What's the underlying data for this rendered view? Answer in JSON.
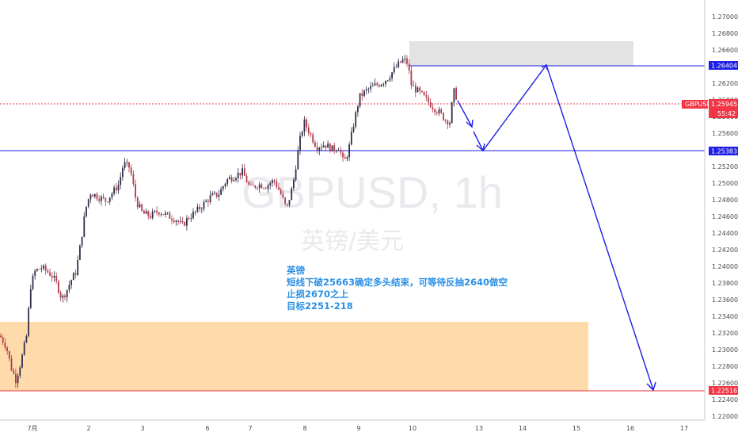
{
  "chart_data": {
    "type": "candlestick",
    "watermark": {
      "symbol": "GBPUSD, 1h",
      "name": "英镑/美元"
    },
    "y_ticks": [
      "1.27000",
      "1.26800",
      "1.26600",
      "1.26200",
      "1.26000",
      "1.25800",
      "1.25600",
      "1.25200",
      "1.25000",
      "1.24800",
      "1.24600",
      "1.24400",
      "1.24200",
      "1.24000",
      "1.23800",
      "1.23600",
      "1.23400",
      "1.23200",
      "1.23000",
      "1.22800",
      "1.22600",
      "1.22400",
      "1.22000"
    ],
    "ylim": [
      1.221,
      1.272
    ],
    "x_ticks": [
      "7月",
      "2",
      "3",
      "6",
      "7",
      "8",
      "9",
      "10",
      "13",
      "14",
      "15",
      "16",
      "17"
    ],
    "ohlc": [],
    "price_labels": [
      {
        "name": "GBPUSD",
        "value": "1.25945",
        "countdown": "55:42",
        "color": "#f23645"
      },
      {
        "value": "1.26404",
        "color": "#1e1ee6"
      },
      {
        "value": "1.25383",
        "color": "#1e1ee6"
      },
      {
        "value": "1.22516",
        "color": "#f23645"
      }
    ],
    "horizontal_lines": [
      {
        "price": 1.26404,
        "color": "#1e1ee6"
      },
      {
        "price": 1.25383,
        "color": "#1e1ee6"
      },
      {
        "price": 1.22516,
        "color": "#f23645"
      },
      {
        "price": 1.25945,
        "color": "#f23645",
        "style": "dotted"
      }
    ],
    "zones": [
      {
        "kind": "resistance",
        "from": 1.264,
        "to": 1.267,
        "color": "#d9d9db"
      },
      {
        "kind": "support",
        "from": 1.2252,
        "to": 1.2336,
        "color": "#ffd59e"
      }
    ],
    "annotation": [
      "英镑",
      "短线下破25663确定多头结束，可等待反抽2640做空",
      "止损2670之上",
      "目标2251-218"
    ],
    "colors": {
      "up": "#2f2f4a",
      "down": "#b23a4a"
    }
  }
}
